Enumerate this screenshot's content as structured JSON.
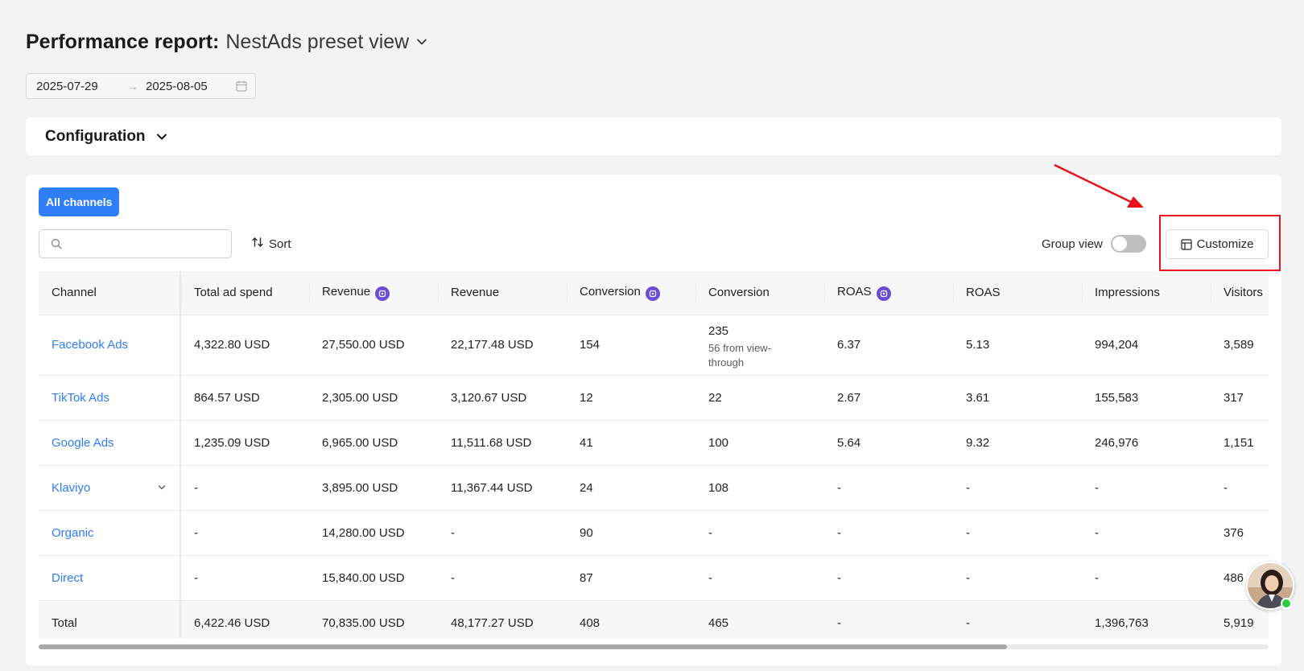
{
  "header": {
    "title": "Performance report:",
    "view_name": "NestAds preset view"
  },
  "date_range": {
    "start": "2025-07-29",
    "separator": "→",
    "end": "2025-08-05"
  },
  "configuration": {
    "title": "Configuration"
  },
  "tabs": {
    "all_channels": "All channels"
  },
  "search": {
    "placeholder": ""
  },
  "toolbar": {
    "sort_label": "Sort",
    "group_view_label": "Group view",
    "group_view_on": false,
    "customize_label": "Customize"
  },
  "table": {
    "headers": [
      "Channel",
      "Total ad spend",
      "Revenue",
      "Revenue",
      "Conversion",
      "Conversion",
      "ROAS",
      "ROAS",
      "Impressions",
      "Visitors"
    ],
    "rows": [
      {
        "channel": "Facebook Ads",
        "cells": [
          "4,322.80 USD",
          "27,550.00 USD",
          "22,177.48 USD",
          "154",
          "235",
          "6.37",
          "5.13",
          "994,204",
          "3,589"
        ],
        "note": "56 from view-through"
      },
      {
        "channel": "TikTok Ads",
        "cells": [
          "864.57 USD",
          "2,305.00 USD",
          "3,120.67 USD",
          "12",
          "22",
          "2.67",
          "3.61",
          "155,583",
          "317"
        ]
      },
      {
        "channel": "Google Ads",
        "cells": [
          "1,235.09 USD",
          "6,965.00 USD",
          "11,511.68 USD",
          "41",
          "100",
          "5.64",
          "9.32",
          "246,976",
          "1,151"
        ]
      },
      {
        "channel": "Klaviyo",
        "cells": [
          "-",
          "3,895.00 USD",
          "11,367.44 USD",
          "24",
          "108",
          "-",
          "-",
          "-",
          "-"
        ]
      },
      {
        "channel": "Organic",
        "cells": [
          "-",
          "14,280.00 USD",
          "-",
          "90",
          "-",
          "-",
          "-",
          "-",
          "376"
        ]
      },
      {
        "channel": "Direct",
        "cells": [
          "-",
          "15,840.00 USD",
          "-",
          "87",
          "-",
          "-",
          "-",
          "-",
          "486"
        ]
      }
    ],
    "total": {
      "label": "Total",
      "cells": [
        "6,422.46 USD",
        "70,835.00 USD",
        "48,177.27 USD",
        "408",
        "465",
        "-",
        "-",
        "1,396,763",
        "5,919"
      ]
    }
  },
  "colors": {
    "accent": "#2f7ef5",
    "ai_badge": "#6a4fd6",
    "highlight": "#e8121c"
  }
}
